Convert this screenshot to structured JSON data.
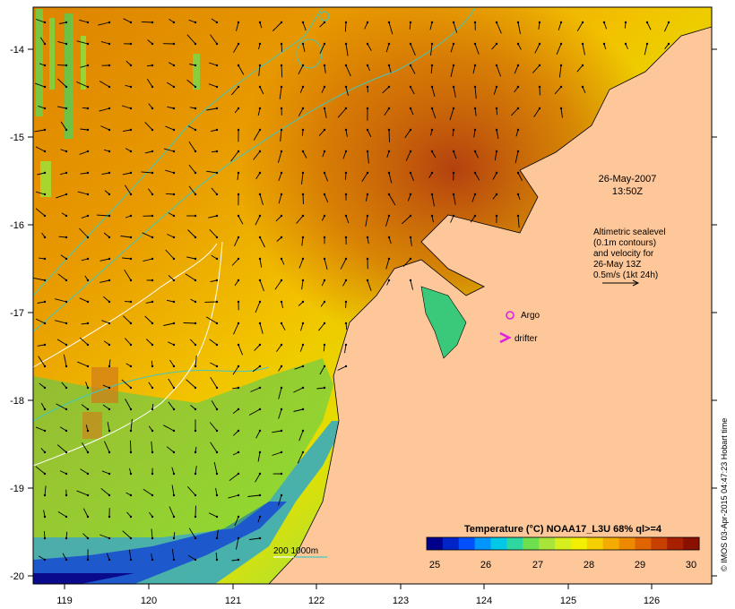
{
  "map": {
    "date_line1": "26-May-2007",
    "date_line2": "13:50Z",
    "altimetry_line1": "Altimetric sealevel",
    "altimetry_line2": "(0.1m contours)",
    "altimetry_line3": "and velocity for",
    "altimetry_line4": "26-May 13Z",
    "altimetry_line5": "0.5m/s (1kt 24h)",
    "argo_label": "Argo",
    "drifter_label": "drifter",
    "bathymetry_label": "200  1000m",
    "credit": "© IMOS 03-Apr-2015 04:47:23 Hobart time",
    "x_ticks": [
      "119",
      "120",
      "121",
      "122",
      "123",
      "124",
      "125",
      "126"
    ],
    "y_ticks": [
      "-14",
      "-15",
      "-16",
      "-17",
      "-18",
      "-19",
      "-20"
    ],
    "land_color": "#fdc79a",
    "argo_color": "#e020e0"
  },
  "colorbar": {
    "title": "Temperature (°C) NOAA17_L3U 68% ql>=4",
    "ticks": [
      "25",
      "26",
      "27",
      "28",
      "29",
      "30"
    ],
    "colors": [
      "#00008c",
      "#0024c8",
      "#0050ff",
      "#0096ff",
      "#00c8e6",
      "#2ed7a0",
      "#6ee050",
      "#a8e43a",
      "#d6ee1e",
      "#f2f000",
      "#f6cf00",
      "#f4ac00",
      "#ee8a00",
      "#e06400",
      "#c84000",
      "#a82000",
      "#8a1000"
    ]
  }
}
